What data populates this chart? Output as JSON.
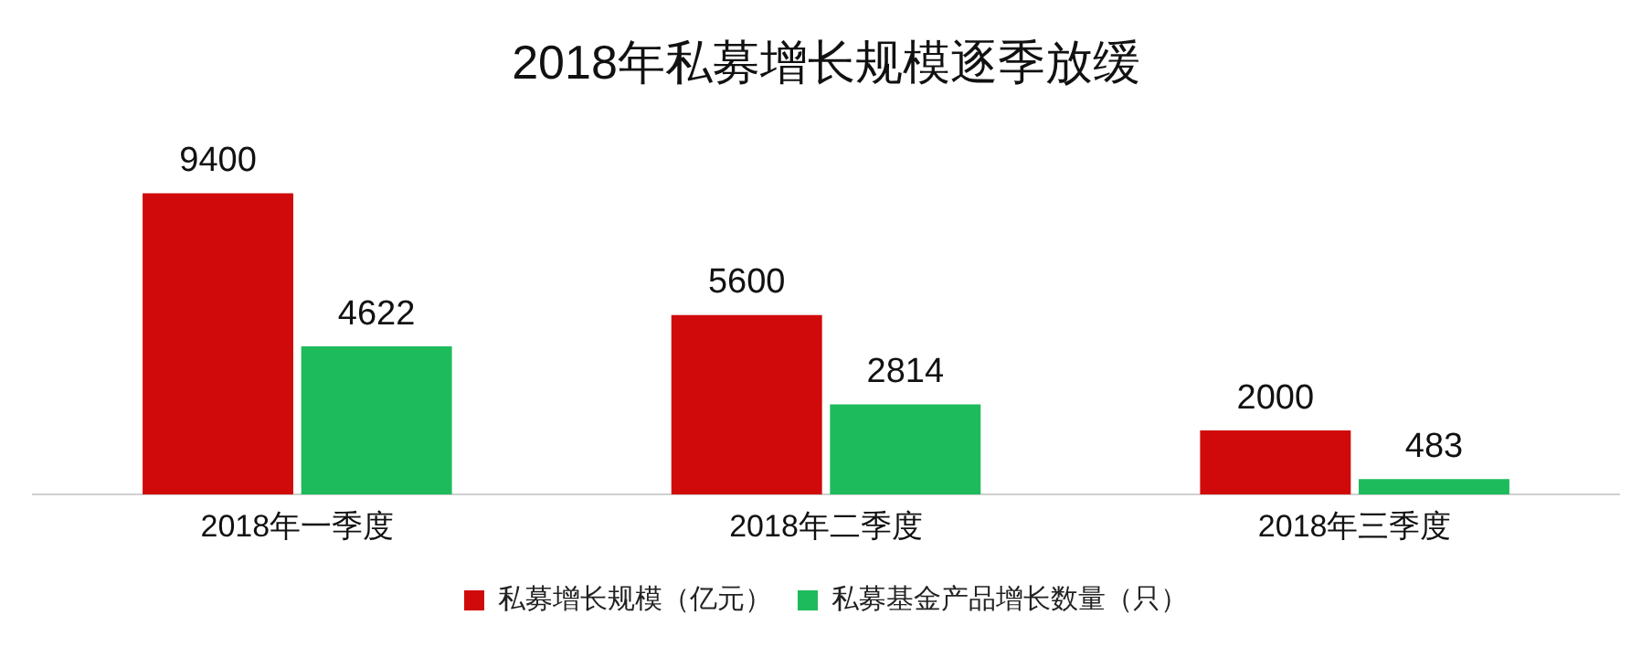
{
  "chart_data": {
    "type": "bar",
    "title": "2018年私募增长规模逐季放缓",
    "categories": [
      "2018年一季度",
      "2018年二季度",
      "2018年三季度"
    ],
    "series": [
      {
        "name": "私募增长规模（亿元）",
        "color": "#d00a0a",
        "values": [
          9400,
          5600,
          2000
        ]
      },
      {
        "name": "私募基金产品增长数量（只）",
        "color": "#1dbb5c",
        "values": [
          4622,
          2814,
          483
        ]
      }
    ],
    "data_labels": true,
    "legend": "bottom",
    "grid": false,
    "tick_labels": "x"
  }
}
